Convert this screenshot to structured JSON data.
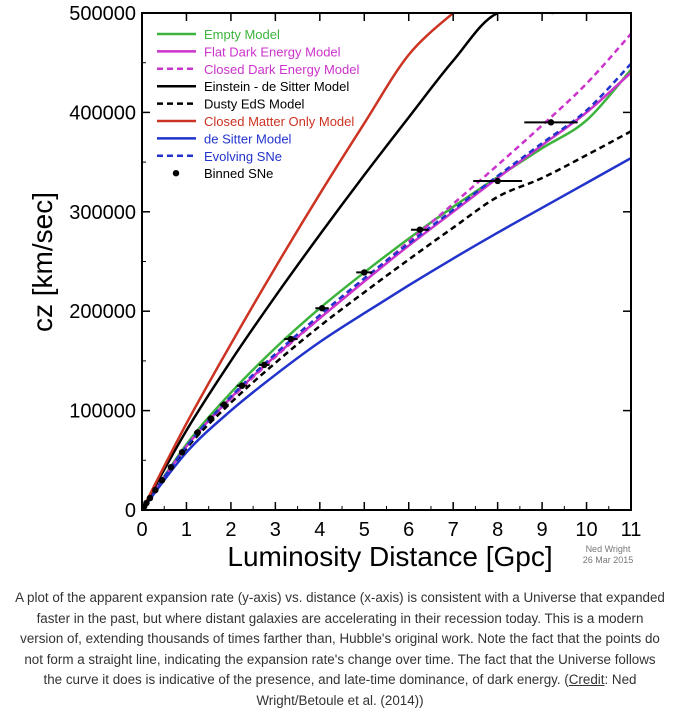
{
  "chart_data": {
    "type": "line",
    "xlabel": "Luminosity Distance [Gpc]",
    "ylabel": "cz [km/sec]",
    "xlim": [
      0,
      11
    ],
    "ylim": [
      0,
      500000
    ],
    "x_ticks": [
      "0",
      "1",
      "2",
      "3",
      "4",
      "5",
      "6",
      "7",
      "8",
      "9",
      "10",
      "11"
    ],
    "y_ticks": [
      "0",
      "100000",
      "200000",
      "300000",
      "400000",
      "500000"
    ],
    "grid": false,
    "legend_position": "top-left",
    "series": [
      {
        "name": "Empty Model",
        "color": "#3cb33c",
        "style": "solid",
        "points": [
          [
            0,
            0
          ],
          [
            1,
            66000
          ],
          [
            2,
            118000
          ],
          [
            3,
            163000
          ],
          [
            4,
            203000
          ],
          [
            5,
            239000
          ],
          [
            6,
            273000
          ],
          [
            7,
            305000
          ],
          [
            8,
            335000
          ],
          [
            9,
            364000
          ],
          [
            10,
            392000
          ],
          [
            11,
            443000
          ]
        ]
      },
      {
        "name": "Flat Dark Energy Model",
        "color": "#cc33cc",
        "style": "solid",
        "points": [
          [
            0,
            0
          ],
          [
            1,
            64000
          ],
          [
            2,
            113000
          ],
          [
            3,
            155000
          ],
          [
            4,
            193000
          ],
          [
            5,
            230000
          ],
          [
            6,
            266000
          ],
          [
            7,
            300000
          ],
          [
            8,
            334000
          ],
          [
            9,
            367000
          ],
          [
            10,
            400000
          ],
          [
            11,
            440000
          ]
        ]
      },
      {
        "name": "Closed Dark Energy Model",
        "color": "#cc33cc",
        "style": "dashed",
        "points": [
          [
            0,
            0
          ],
          [
            1,
            64000
          ],
          [
            2,
            112000
          ],
          [
            3,
            154000
          ],
          [
            4,
            193000
          ],
          [
            5,
            232000
          ],
          [
            6,
            270000
          ],
          [
            7,
            308000
          ],
          [
            8,
            347000
          ],
          [
            9,
            387000
          ],
          [
            10,
            429000
          ],
          [
            11,
            479000
          ]
        ]
      },
      {
        "name": "Einstein - de Sitter Model",
        "color": "#000000",
        "style": "solid",
        "points": [
          [
            0,
            0
          ],
          [
            1,
            80000
          ],
          [
            2,
            150000
          ],
          [
            3,
            215000
          ],
          [
            4,
            277000
          ],
          [
            5,
            337000
          ],
          [
            6,
            395000
          ],
          [
            7,
            452000
          ],
          [
            8,
            500000
          ],
          [
            9.25,
            500000
          ]
        ]
      },
      {
        "name": "Dusty EdS Model",
        "color": "#000000",
        "style": "dashed",
        "points": [
          [
            0,
            0
          ],
          [
            1,
            62000
          ],
          [
            2,
            108000
          ],
          [
            3,
            148000
          ],
          [
            4,
            185000
          ],
          [
            5,
            219000
          ],
          [
            6,
            252000
          ],
          [
            7,
            284000
          ],
          [
            8,
            315000
          ],
          [
            9,
            334000
          ],
          [
            10,
            357000
          ],
          [
            11,
            381000
          ]
        ]
      },
      {
        "name": "Closed Matter Only Model",
        "color": "#cc3322",
        "style": "solid",
        "points": [
          [
            0,
            0
          ],
          [
            1,
            87000
          ],
          [
            2,
            167000
          ],
          [
            3,
            244000
          ],
          [
            4,
            318000
          ],
          [
            5,
            389000
          ],
          [
            6,
            458000
          ],
          [
            7,
            500000
          ],
          [
            7.05,
            500000
          ]
        ]
      },
      {
        "name": "de Sitter Model",
        "color": "#2233cc",
        "style": "solid",
        "points": [
          [
            0,
            0
          ],
          [
            1,
            58000
          ],
          [
            2,
            100000
          ],
          [
            3,
            136000
          ],
          [
            4,
            169000
          ],
          [
            5,
            198000
          ],
          [
            6,
            226000
          ],
          [
            7,
            253000
          ],
          [
            8,
            279000
          ],
          [
            9,
            304000
          ],
          [
            10,
            329000
          ],
          [
            11,
            354000
          ]
        ]
      },
      {
        "name": "Evolving SNe",
        "color": "#2233cc",
        "style": "dashed",
        "points": [
          [
            0,
            0
          ],
          [
            1,
            64000
          ],
          [
            2,
            114000
          ],
          [
            3,
            157000
          ],
          [
            4,
            196000
          ],
          [
            5,
            233000
          ],
          [
            6,
            268000
          ],
          [
            7,
            302000
          ],
          [
            8,
            336000
          ],
          [
            9,
            369000
          ],
          [
            10,
            402000
          ],
          [
            11,
            449000
          ]
        ]
      }
    ],
    "binned_sne": {
      "name": "Binned SNe",
      "color": "#000000",
      "points": [
        {
          "x": 0.05,
          "y": 3500,
          "xerr": 0.0
        },
        {
          "x": 0.1,
          "y": 7000,
          "xerr": 0.0
        },
        {
          "x": 0.18,
          "y": 12000,
          "xerr": 0.0
        },
        {
          "x": 0.3,
          "y": 20000,
          "xerr": 0.0
        },
        {
          "x": 0.45,
          "y": 30000,
          "xerr": 0.0
        },
        {
          "x": 0.65,
          "y": 43000,
          "xerr": 0.05
        },
        {
          "x": 0.9,
          "y": 58000,
          "xerr": 0.05
        },
        {
          "x": 1.25,
          "y": 78000,
          "xerr": 0.08
        },
        {
          "x": 1.55,
          "y": 92000,
          "xerr": 0.08
        },
        {
          "x": 1.85,
          "y": 106000,
          "xerr": 0.1
        },
        {
          "x": 2.25,
          "y": 125000,
          "xerr": 0.12
        },
        {
          "x": 2.75,
          "y": 146000,
          "xerr": 0.12
        },
        {
          "x": 3.35,
          "y": 172000,
          "xerr": 0.15
        },
        {
          "x": 4.05,
          "y": 203000,
          "xerr": 0.15
        },
        {
          "x": 5.0,
          "y": 239000,
          "xerr": 0.18
        },
        {
          "x": 6.25,
          "y": 282000,
          "xerr": 0.2
        },
        {
          "x": 8.0,
          "y": 331000,
          "xerr": 0.55
        },
        {
          "x": 9.2,
          "y": 390000,
          "xerr": 0.6
        }
      ]
    }
  },
  "credit": {
    "line1": "Ned Wright",
    "line2": "26 Mar 2015"
  },
  "caption": {
    "text": "A plot of the apparent expansion rate (y-axis) vs. distance (x-axis) is consistent with a Universe that expanded faster in the past, but where distant galaxies are accelerating in their recession today. This is a modern version of, extending thousands of times farther than, Hubble's original work. Note the fact that the points do not form a straight line, indicating the expansion rate's change over time. The fact that the Universe follows the curve it does is indicative of the presence, and late-time dominance, of dark energy. (",
    "link_label": "Credit",
    "suffix": ": Ned Wright/Betoule et al. (2014))"
  }
}
